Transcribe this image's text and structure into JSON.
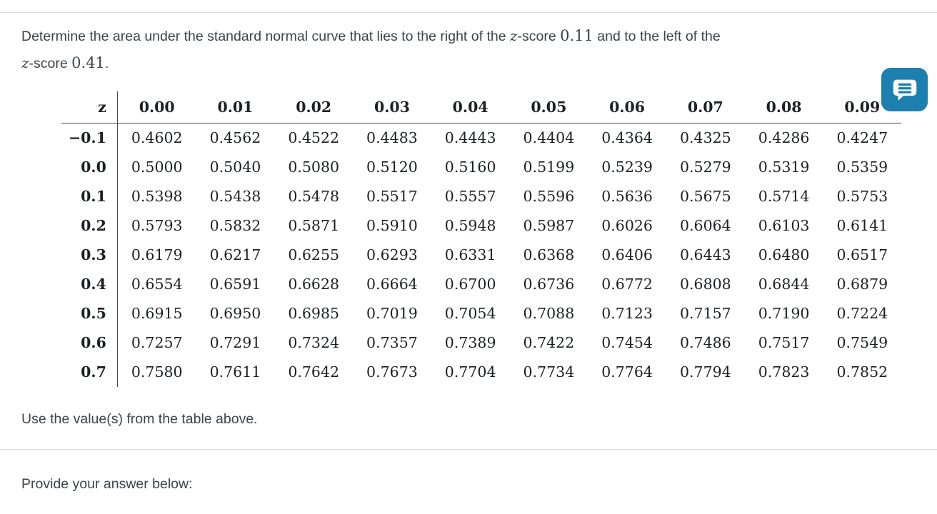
{
  "question": {
    "segments": [
      "Determine the area under the standard normal curve that lies to the right of the ",
      "z",
      "-score ",
      "0.11",
      " and to the left of the",
      "z",
      "-score ",
      "0.41",
      "."
    ]
  },
  "z_table": {
    "header": [
      "z",
      "0.00",
      "0.01",
      "0.02",
      "0.03",
      "0.04",
      "0.05",
      "0.06",
      "0.07",
      "0.08",
      "0.09"
    ],
    "rows": [
      {
        "label": "−0.1",
        "values": [
          "0.4602",
          "0.4562",
          "0.4522",
          "0.4483",
          "0.4443",
          "0.4404",
          "0.4364",
          "0.4325",
          "0.4286",
          "0.4247"
        ]
      },
      {
        "label": "0.0",
        "values": [
          "0.5000",
          "0.5040",
          "0.5080",
          "0.5120",
          "0.5160",
          "0.5199",
          "0.5239",
          "0.5279",
          "0.5319",
          "0.5359"
        ]
      },
      {
        "label": "0.1",
        "values": [
          "0.5398",
          "0.5438",
          "0.5478",
          "0.5517",
          "0.5557",
          "0.5596",
          "0.5636",
          "0.5675",
          "0.5714",
          "0.5753"
        ]
      },
      {
        "label": "0.2",
        "values": [
          "0.5793",
          "0.5832",
          "0.5871",
          "0.5910",
          "0.5948",
          "0.5987",
          "0.6026",
          "0.6064",
          "0.6103",
          "0.6141"
        ]
      },
      {
        "label": "0.3",
        "values": [
          "0.6179",
          "0.6217",
          "0.6255",
          "0.6293",
          "0.6331",
          "0.6368",
          "0.6406",
          "0.6443",
          "0.6480",
          "0.6517"
        ]
      },
      {
        "label": "0.4",
        "values": [
          "0.6554",
          "0.6591",
          "0.6628",
          "0.6664",
          "0.6700",
          "0.6736",
          "0.6772",
          "0.6808",
          "0.6844",
          "0.6879"
        ]
      },
      {
        "label": "0.5",
        "values": [
          "0.6915",
          "0.6950",
          "0.6985",
          "0.7019",
          "0.7054",
          "0.7088",
          "0.7123",
          "0.7157",
          "0.7190",
          "0.7224"
        ]
      },
      {
        "label": "0.6",
        "values": [
          "0.7257",
          "0.7291",
          "0.7324",
          "0.7357",
          "0.7389",
          "0.7422",
          "0.7454",
          "0.7486",
          "0.7517",
          "0.7549"
        ]
      },
      {
        "label": "0.7",
        "values": [
          "0.7580",
          "0.7611",
          "0.7642",
          "0.7673",
          "0.7704",
          "0.7734",
          "0.7764",
          "0.7794",
          "0.7823",
          "0.7852"
        ]
      }
    ]
  },
  "instructions": {
    "use_values": "Use the value(s) from the table above.",
    "provide_answer": "Provide your answer below:"
  },
  "help_button": {
    "icon": "chat-bubble-lines-icon",
    "color": "#1c7fad"
  }
}
